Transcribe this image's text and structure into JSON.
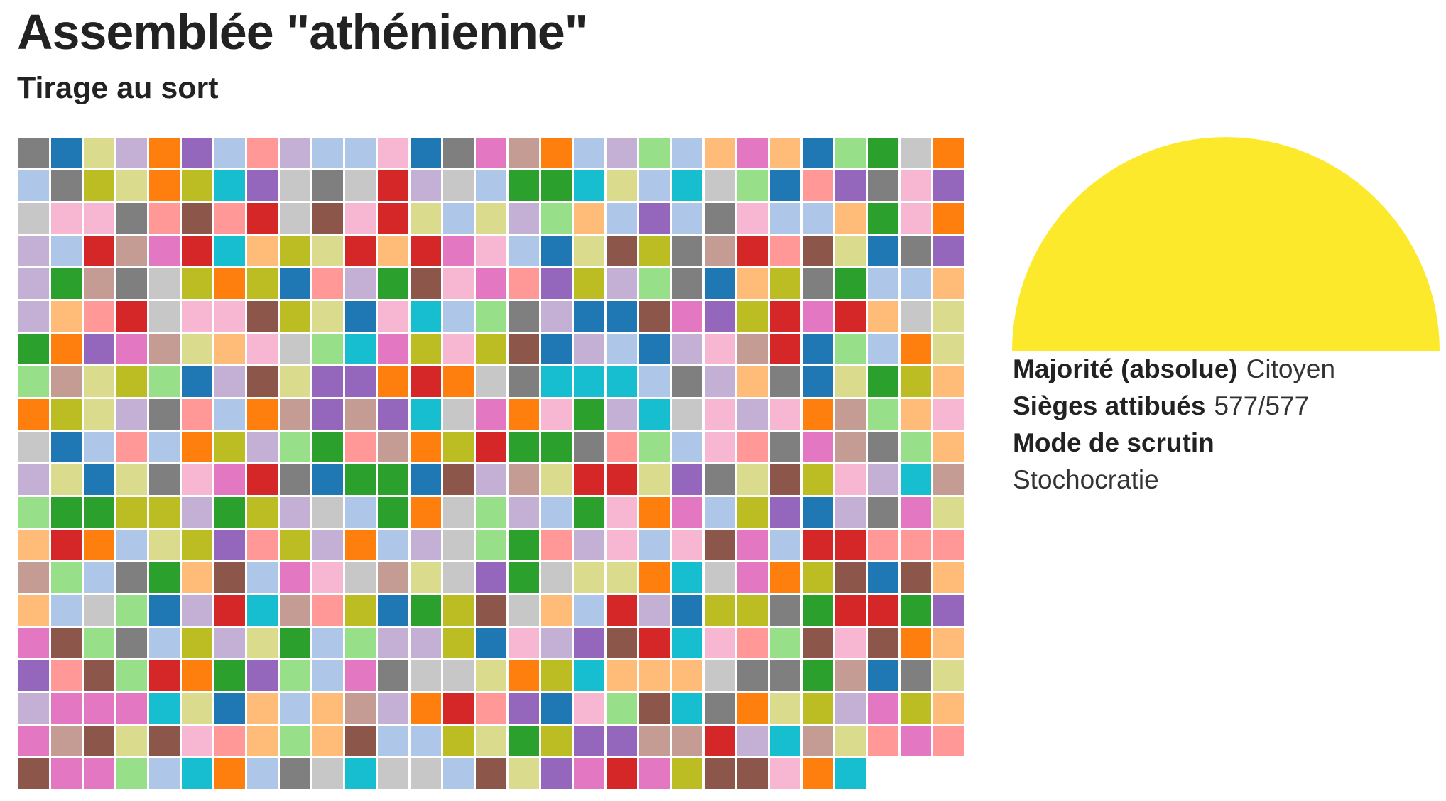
{
  "header": {
    "title": "Assemblée \"athénienne\"",
    "subtitle": "Tirage au sort"
  },
  "seats": {
    "total": 577,
    "palette": [
      "#f7b6d2",
      "#c49c94",
      "#dbdb8d",
      "#9467bd",
      "#2ca02c",
      "#ff9896",
      "#98df8a",
      "#17becf",
      "#c7c7c7",
      "#d62728",
      "#aec7e8",
      "#ff7f0e",
      "#ffbb78",
      "#8c564b",
      "#1f77b4",
      "#e377c2",
      "#7f7f7f",
      "#bcbd22",
      "#c5b0d5"
    ]
  },
  "hemicycle": {
    "party": "Citoyen",
    "color": "#fde92b",
    "share": 1.0
  },
  "info": {
    "majority_label": "Majorité (absolue)",
    "majority_value": "Citoyen",
    "seats_label": "Sièges attibués",
    "seats_value": "577/577",
    "mode_label": "Mode de scrutin",
    "mode_value": "Stochocratie"
  }
}
